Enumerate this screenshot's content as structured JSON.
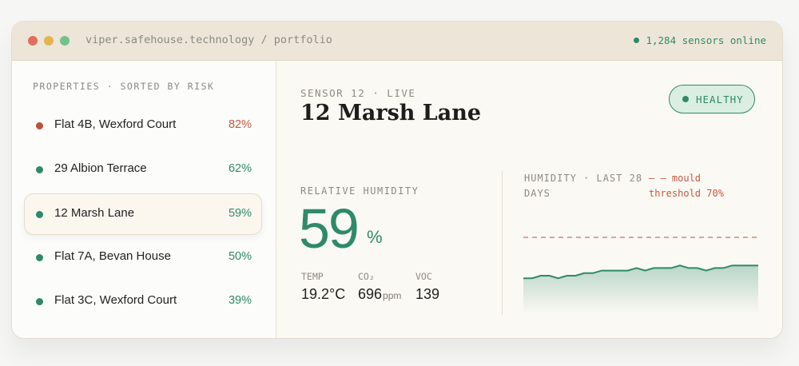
{
  "window": {
    "url": "viper.safehouse.technology / portfolio",
    "status": "1,284 sensors online"
  },
  "sidebar": {
    "heading": "PROPERTIES · SORTED BY RISK",
    "items": [
      {
        "name": "Flat 4B, Wexford Court",
        "pct": "82%",
        "status": "risk"
      },
      {
        "name": "29 Albion Terrace",
        "pct": "62%",
        "status": "ok"
      },
      {
        "name": "12 Marsh Lane",
        "pct": "59%",
        "status": "ok",
        "selected": true
      },
      {
        "name": "Flat 7A, Bevan House",
        "pct": "50%",
        "status": "ok"
      },
      {
        "name": "Flat 3C, Wexford Court",
        "pct": "39%",
        "status": "ok"
      }
    ]
  },
  "colors": {
    "accent": "#2e8a68",
    "risk": "#c35a40"
  },
  "detail": {
    "sensor_label": "SENSOR 12 · LIVE",
    "title": "12 Marsh Lane",
    "badge": "HEALTHY",
    "rh_label": "RELATIVE HUMIDITY",
    "rh_value": "59",
    "rh_unit": "%",
    "metrics": [
      {
        "label": "TEMP",
        "value": "19.2°C",
        "unit": ""
      },
      {
        "label": "CO₂",
        "value": "696",
        "unit": "ppm"
      },
      {
        "label": "VOC",
        "value": "139",
        "unit": ""
      }
    ]
  },
  "chart_data": {
    "type": "area",
    "title": "HUMIDITY · LAST 28 DAYS",
    "legend": "— — mould threshold 70%",
    "threshold": 70,
    "ylim": [
      0,
      100
    ],
    "x": [
      1,
      2,
      3,
      4,
      5,
      6,
      7,
      8,
      9,
      10,
      11,
      12,
      13,
      14,
      15,
      16,
      17,
      18,
      19,
      20,
      21,
      22,
      23,
      24,
      25,
      26,
      27,
      28
    ],
    "values": [
      54,
      54,
      55,
      55,
      54,
      55,
      55,
      56,
      56,
      57,
      57,
      57,
      57,
      58,
      57,
      58,
      58,
      58,
      59,
      58,
      58,
      57,
      58,
      58,
      59,
      59,
      59,
      59
    ]
  }
}
